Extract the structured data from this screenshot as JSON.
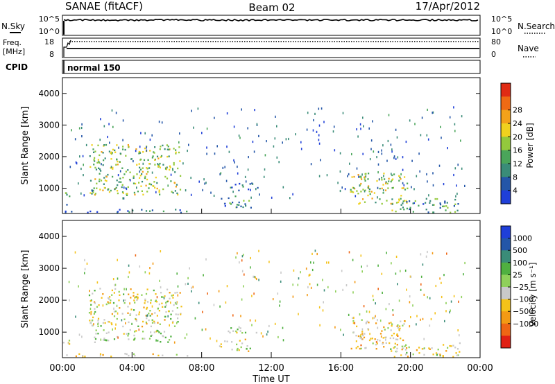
{
  "header": {
    "station": "SANAE (fitACF)",
    "beam": "Beam 02",
    "date": "17/Apr/2012"
  },
  "noise_panel": {
    "left_label": "N.Sky",
    "right_label": "N.Search",
    "left_ticks": [
      "10^5",
      "10^0"
    ],
    "right_ticks": [
      "10^5",
      "10^0"
    ]
  },
  "freq_panel": {
    "left_label_line1": "Freq.",
    "left_label_line2": "[MHz]",
    "right_label": "Nave",
    "left_ticks": [
      "18",
      "8"
    ],
    "right_ticks": [
      "80",
      "0"
    ]
  },
  "cpid": {
    "label": "CPID",
    "mode": "normal 150"
  },
  "colors": {
    "power": [
      "#1f3fd8",
      "#2456a8",
      "#3a8c78",
      "#4aa55a",
      "#93c93c",
      "#f0d21e",
      "#f3a21a",
      "#ef6a14",
      "#e02b14"
    ],
    "velocity": [
      "#1f3fd8",
      "#2456a8",
      "#3a8c78",
      "#4fb040",
      "#8fd05a",
      "#c9c9c9",
      "#f4c21a",
      "#f39a14",
      "#ef6614",
      "#e02014"
    ]
  },
  "chart_data": [
    {
      "type": "heatmap",
      "name": "power",
      "ylabel": "Slant Range [km]",
      "yticks": [
        "1000",
        "2000",
        "3000",
        "4000"
      ],
      "ylim": [
        200,
        4500
      ],
      "xlim": [
        0,
        24
      ],
      "colorbar_label": "Power [dB]",
      "colorbar_ticks": [
        "4",
        "8",
        "12",
        "16",
        "20",
        "24",
        "28"
      ],
      "colorbar_range": [
        0,
        30
      ],
      "regions": [
        {
          "t0": 1.5,
          "t1": 6.8,
          "r0": 800,
          "r1": 2400,
          "level": 14
        },
        {
          "t0": 0.0,
          "t1": 0.4,
          "r0": 500,
          "r1": 900,
          "level": 10
        },
        {
          "t0": 0.1,
          "t1": 7.3,
          "r0": 250,
          "r1": 350,
          "level": 6
        },
        {
          "t0": 9.0,
          "t1": 10.8,
          "r0": 400,
          "r1": 800,
          "level": 8
        },
        {
          "t0": 9.5,
          "t1": 11.2,
          "r0": 950,
          "r1": 1200,
          "level": 6
        },
        {
          "t0": 16.5,
          "t1": 19.8,
          "r0": 500,
          "r1": 1500,
          "level": 16
        },
        {
          "t0": 18.8,
          "t1": 22.8,
          "r0": 250,
          "r1": 700,
          "level": 10
        }
      ]
    },
    {
      "type": "heatmap",
      "name": "velocity",
      "ylabel": "Slant Range [km]",
      "yticks": [
        "1000",
        "2000",
        "3000",
        "4000"
      ],
      "ylim": [
        200,
        4500
      ],
      "xlim": [
        0,
        24
      ],
      "xlabel": "Time UT",
      "xticks": [
        "00:00",
        "04:00",
        "08:00",
        "12:00",
        "16:00",
        "20:00",
        "00:00"
      ],
      "colorbar_label": "Velocity [m s⁻¹]",
      "colorbar_ticks": [
        "1000",
        "500",
        "100",
        "25",
        "−25",
        "−100",
        "−500",
        "−1000"
      ],
      "colorbar_range": [
        -1200,
        1200
      ],
      "regions": [
        {
          "t0": 1.5,
          "t1": 6.8,
          "r0": 1200,
          "r1": 2400,
          "level": -120
        },
        {
          "t0": 1.8,
          "t1": 6.3,
          "r0": 700,
          "r1": 1100,
          "level": 60
        },
        {
          "t0": 0.0,
          "t1": 0.4,
          "r0": 500,
          "r1": 900,
          "level": 40
        },
        {
          "t0": 0.1,
          "t1": 7.3,
          "r0": 250,
          "r1": 350,
          "level": -200
        },
        {
          "t0": 9.0,
          "t1": 10.8,
          "r0": 400,
          "r1": 800,
          "level": -60
        },
        {
          "t0": 9.5,
          "t1": 11.2,
          "r0": 950,
          "r1": 1200,
          "level": 0
        },
        {
          "t0": 16.5,
          "t1": 19.8,
          "r0": 500,
          "r1": 1500,
          "level": -300
        },
        {
          "t0": 18.8,
          "t1": 22.8,
          "r0": 250,
          "r1": 700,
          "level": -150
        }
      ]
    }
  ]
}
